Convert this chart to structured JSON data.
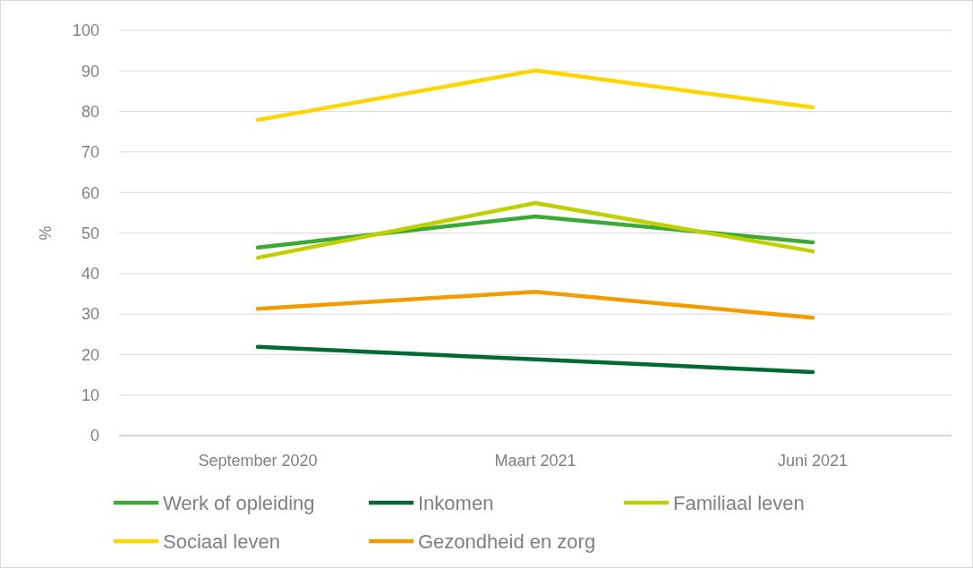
{
  "chart_data": {
    "type": "line",
    "ylabel": "%",
    "categories": [
      "September 2020",
      "Maart 2021",
      "Juni 2021"
    ],
    "series": [
      {
        "name": "Werk of opleiding",
        "color": "#3aaa35",
        "values": [
          46.4,
          54.1,
          47.7
        ]
      },
      {
        "name": "Inkomen",
        "color": "#006a32",
        "values": [
          21.9,
          18.8,
          15.7
        ]
      },
      {
        "name": "Familiaal leven",
        "color": "#c0cf00",
        "values": [
          43.9,
          57.4,
          45.5
        ]
      },
      {
        "name": "Sociaal leven",
        "color": "#ffd500",
        "values": [
          77.9,
          90.1,
          81.0
        ]
      },
      {
        "name": "Gezondheid en zorg",
        "color": "#f39c00",
        "values": [
          31.3,
          35.5,
          29.1
        ]
      }
    ],
    "ylim": [
      0,
      100
    ],
    "yticks": [
      0,
      10,
      20,
      30,
      40,
      50,
      60,
      70,
      80,
      90,
      100
    ],
    "grid": "y",
    "legend": "bottom",
    "marker": "none",
    "line_style": "solid"
  }
}
